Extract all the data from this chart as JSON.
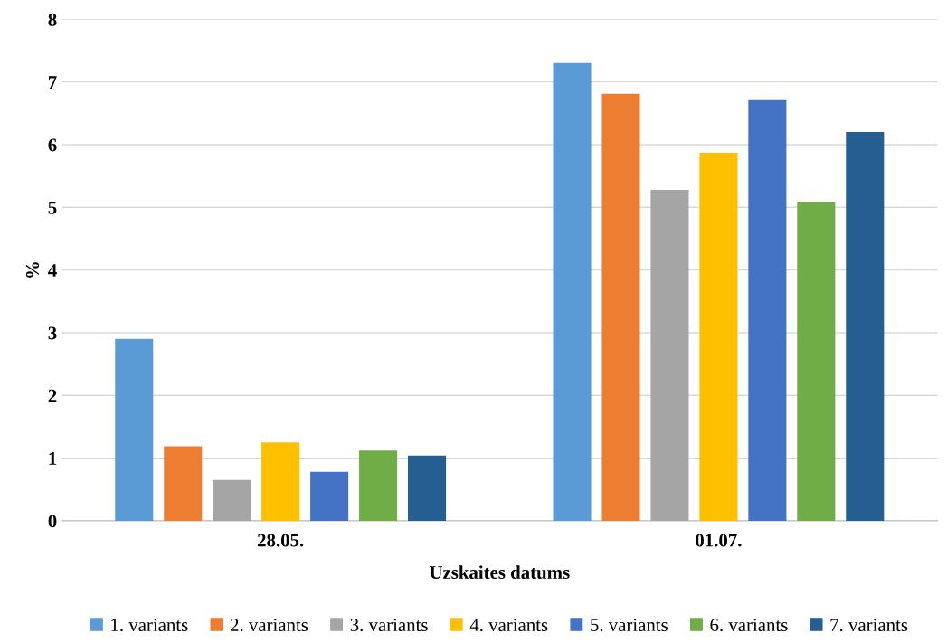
{
  "chart_data": {
    "type": "bar",
    "xlabel": "Uzskaites datums",
    "ylabel": "%",
    "categories": [
      "28.05.",
      "01.07."
    ],
    "series": [
      {
        "name": "1. variants",
        "color": "#5b9bd5",
        "values": [
          2.9,
          7.3
        ]
      },
      {
        "name": "2. variants",
        "color": "#ed7d31",
        "values": [
          1.19,
          6.81
        ]
      },
      {
        "name": "3. variants",
        "color": "#a5a5a5",
        "values": [
          0.65,
          5.28
        ]
      },
      {
        "name": "4. variants",
        "color": "#ffc000",
        "values": [
          1.25,
          5.87
        ]
      },
      {
        "name": "5. variants",
        "color": "#4472c4",
        "values": [
          0.78,
          6.71
        ]
      },
      {
        "name": "6. variants",
        "color": "#70ad47",
        "values": [
          1.12,
          5.09
        ]
      },
      {
        "name": "7. variants",
        "color": "#255e91",
        "values": [
          1.04,
          6.2
        ]
      }
    ],
    "ylim": [
      0,
      8
    ],
    "yticks": [
      0,
      1,
      2,
      3,
      4,
      5,
      6,
      7,
      8
    ],
    "grid": "y",
    "legend": "bottom"
  }
}
